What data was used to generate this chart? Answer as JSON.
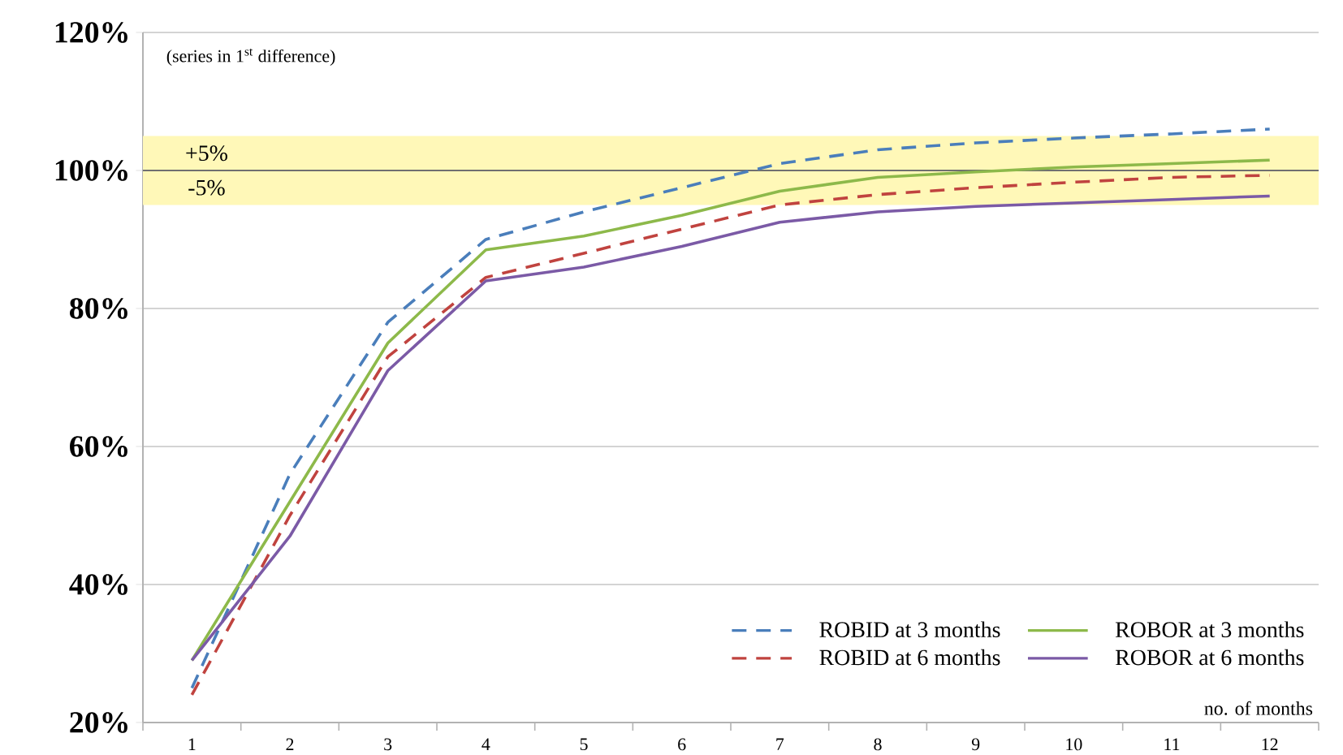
{
  "chart_data": {
    "type": "line",
    "annotations": [
      "(series in 1$^{st}$ difference)"
    ],
    "xlabel": "no. of months",
    "categories": [
      "1",
      "2",
      "3",
      "4",
      "5",
      "6",
      "7",
      "8",
      "9",
      "10",
      "11",
      "12"
    ],
    "series": [
      {
        "name": "ROBID at 3 months",
        "color": "#4a7ebb",
        "line_style": "dashed",
        "values": [
          25,
          56,
          78,
          90,
          94,
          97.5,
          101,
          103,
          104,
          104.7,
          105.3,
          106
        ]
      },
      {
        "name": "ROBOR at 3 months",
        "color": "#8db94a",
        "line_style": "solid",
        "values": [
          29,
          52,
          75,
          88.5,
          90.5,
          93.5,
          97,
          99,
          99.8,
          100.5,
          101,
          101.5
        ]
      },
      {
        "name": "ROBID at 6 months",
        "color": "#c0433f",
        "line_style": "dashed",
        "values": [
          24,
          50,
          73,
          84.5,
          88,
          91.5,
          95,
          96.5,
          97.5,
          98.3,
          99,
          99.3
        ]
      },
      {
        "name": "ROBOR at 6 months",
        "color": "#7b5aa6",
        "line_style": "solid",
        "values": [
          29,
          47,
          71,
          84,
          86,
          89,
          92.5,
          94,
          94.8,
          95.3,
          95.8,
          96.3
        ]
      }
    ],
    "ylim": [
      20,
      120
    ],
    "yticks": [
      {
        "value": 20,
        "label": "20%"
      },
      {
        "value": 40,
        "label": "40%"
      },
      {
        "value": 60,
        "label": "60%"
      },
      {
        "value": 80,
        "label": "80%"
      },
      {
        "value": 100,
        "label": "100%"
      },
      {
        "value": 120,
        "label": "120%"
      }
    ],
    "bands": [
      {
        "axis": "y",
        "from": 100,
        "to": 105,
        "label": "+5%",
        "color": "#fff8b8"
      },
      {
        "axis": "y",
        "from": 95,
        "to": 100,
        "label": "-5%",
        "color": "#fff8b8"
      }
    ],
    "ref_lines": [
      {
        "axis": "y",
        "value": 100,
        "color": "#707070"
      }
    ],
    "grid": "y",
    "legend": "bottom right",
    "marker": "none"
  }
}
